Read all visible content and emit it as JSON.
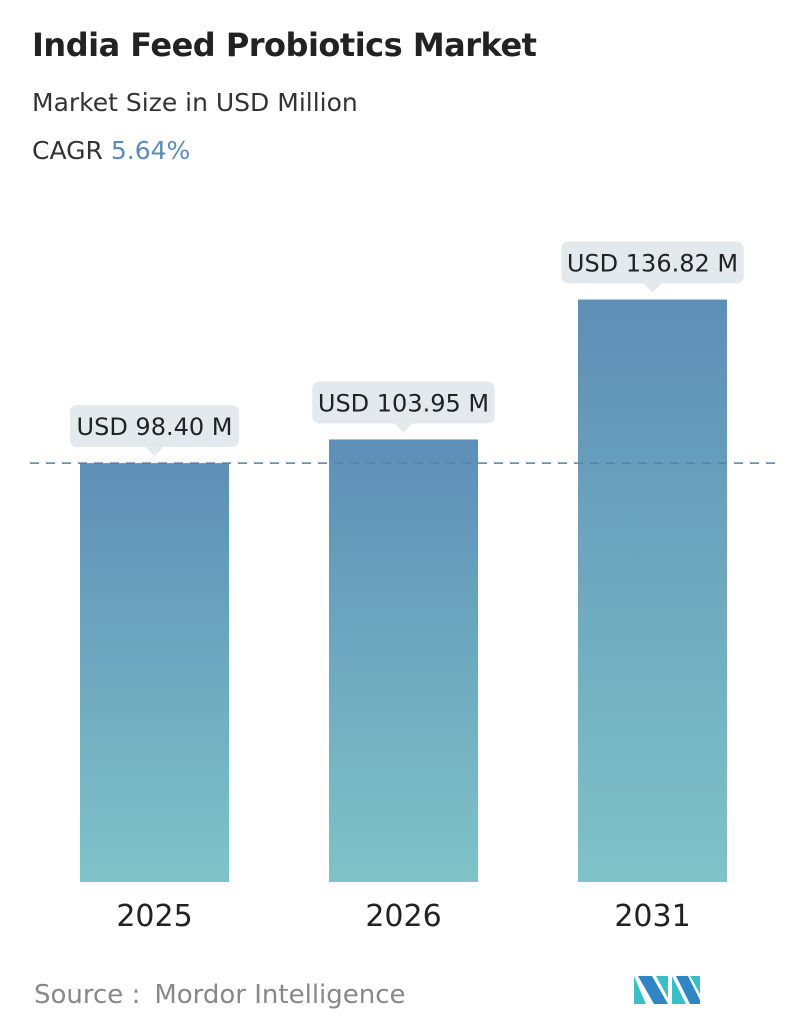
{
  "header": {
    "title": "India Feed Probiotics Market",
    "subtitle": "Market Size in USD Million",
    "cagr_label": "CAGR",
    "cagr_value": "5.64%"
  },
  "chart_data": {
    "type": "bar",
    "categories": [
      "2025",
      "2026",
      "2031"
    ],
    "values": [
      98.4,
      103.95,
      136.82
    ],
    "data_labels": [
      "USD 98.40 M",
      "USD 103.95 M",
      "USD 136.82 M"
    ],
    "reference_line": {
      "value": 98.4,
      "style": "dashed"
    },
    "grid": false,
    "colors": {
      "bar_top": "#5e8fb7",
      "bar_bottom": "#7fc3c8",
      "label_bg": "#e3e9ec",
      "ref_line": "#5a7fa3"
    }
  },
  "footer": {
    "source_label": "Source :",
    "source_name": "Mordor Intelligence"
  }
}
